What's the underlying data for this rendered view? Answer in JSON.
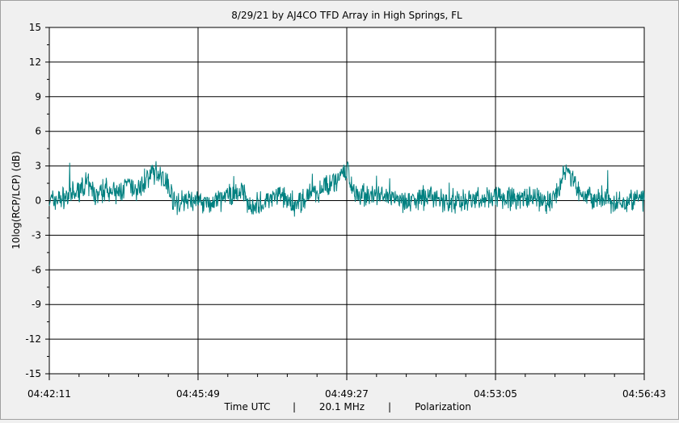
{
  "chart_data": {
    "type": "line",
    "title": "8/29/21  by  AJ4CO TFD Array  in  High Springs, FL",
    "ylabel": "10log(RCP/LCP) (dB)",
    "xlabel_parts": [
      "Time UTC",
      "|",
      "20.1 MHz",
      "|",
      "Polarization"
    ],
    "ylim": [
      -15,
      15
    ],
    "yticks": [
      15,
      12,
      9,
      6,
      3,
      0,
      -3,
      -6,
      -9,
      -12,
      -15
    ],
    "xlim": [
      "04:42:11",
      "04:56:43"
    ],
    "xticks": [
      "04:42:11",
      "04:45:49",
      "04:49:27",
      "04:53:05",
      "04:56:43"
    ],
    "grid": true,
    "series_color": "#008080",
    "series": [
      {
        "x": [
          "04:42:11",
          "04:42:30",
          "04:42:50",
          "04:43:05",
          "04:43:20",
          "04:43:35",
          "04:43:50",
          "04:44:05",
          "04:44:20",
          "04:44:35",
          "04:44:50",
          "04:45:05",
          "04:45:15",
          "04:45:30",
          "04:45:49",
          "04:46:10",
          "04:46:30",
          "04:46:50",
          "04:47:10",
          "04:47:30",
          "04:47:50",
          "04:48:10",
          "04:48:30",
          "04:48:50",
          "04:49:10",
          "04:49:27",
          "04:49:40",
          "04:49:55",
          "04:50:10",
          "04:50:30",
          "04:50:50",
          "04:51:10",
          "04:51:30",
          "04:51:50",
          "04:52:10",
          "04:52:30",
          "04:52:50",
          "04:53:05",
          "04:53:20",
          "04:53:40",
          "04:54:00",
          "04:54:20",
          "04:54:35",
          "04:54:50",
          "04:55:05",
          "04:55:20",
          "04:55:40",
          "04:56:00",
          "04:56:20",
          "04:56:43"
        ],
        "y": [
          0,
          0.2,
          0.6,
          1.5,
          0.3,
          1.2,
          0.5,
          1.3,
          0.8,
          2.0,
          2.5,
          1.5,
          -0.3,
          0,
          0,
          -0.3,
          0.3,
          0.8,
          -0.5,
          0,
          0.5,
          -0.4,
          0.3,
          1.0,
          1.8,
          2.5,
          0.8,
          0.5,
          0.3,
          0.3,
          0,
          0,
          0.5,
          -0.1,
          0,
          0.1,
          0.2,
          0.5,
          0.3,
          0.1,
          0.2,
          -0.2,
          0.5,
          3.0,
          0.8,
          0.2,
          0.2,
          -0.3,
          0.1,
          0
        ]
      }
    ]
  }
}
